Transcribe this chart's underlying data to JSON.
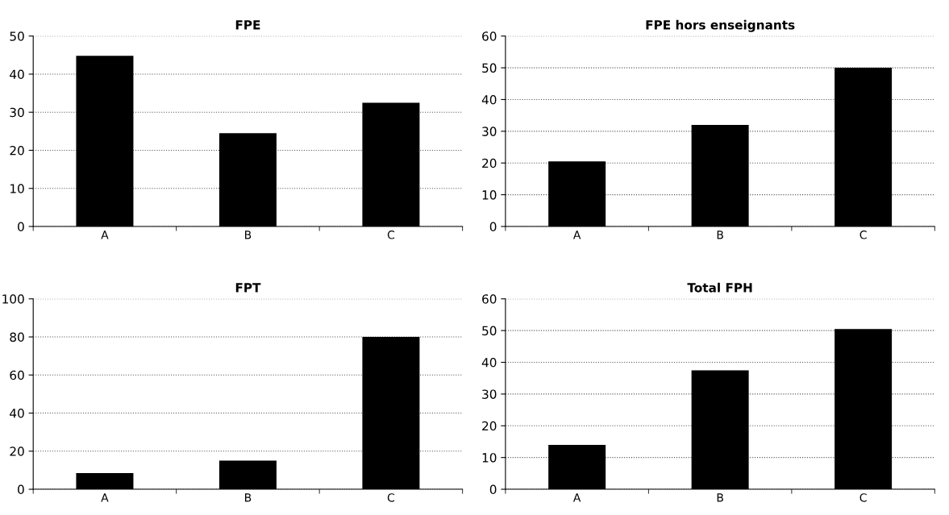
{
  "chart_data": [
    {
      "type": "bar",
      "title": "FPE",
      "categories": [
        "A",
        "B",
        "C"
      ],
      "values": [
        44.8,
        24.5,
        32.5
      ],
      "color": "#000000",
      "ylim": [
        0,
        50
      ],
      "yticks": [
        0,
        10,
        20,
        30,
        40,
        50
      ],
      "grid": "y"
    },
    {
      "type": "bar",
      "title": "FPE hors enseignants",
      "categories": [
        "A",
        "B",
        "C"
      ],
      "values": [
        20.5,
        32,
        50
      ],
      "color": "#000000",
      "ylim": [
        0,
        60
      ],
      "yticks": [
        0,
        10,
        20,
        30,
        40,
        50,
        60
      ],
      "grid": "y"
    },
    {
      "type": "bar",
      "title": "FPT",
      "categories": [
        "A",
        "B",
        "C"
      ],
      "values": [
        8.5,
        15,
        80
      ],
      "color": "#000000",
      "ylim": [
        0,
        100
      ],
      "yticks": [
        0,
        20,
        40,
        60,
        80,
        100
      ],
      "grid": "y"
    },
    {
      "type": "bar",
      "title": "Total FPH",
      "categories": [
        "A",
        "B",
        "C"
      ],
      "values": [
        14,
        37.5,
        50.5
      ],
      "color": "#000000",
      "ylim": [
        0,
        60
      ],
      "yticks": [
        0,
        10,
        20,
        30,
        40,
        50,
        60
      ],
      "grid": "y"
    }
  ]
}
